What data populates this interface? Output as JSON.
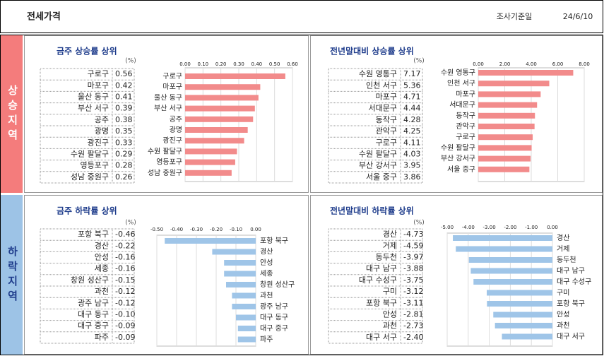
{
  "header": {
    "title": "전세가격",
    "date_label": "조사기준일",
    "date": "24/6/10"
  },
  "regions": [
    "상승지역",
    "하락지역"
  ],
  "chart_data": [
    {
      "type": "bar",
      "title": "금주 상승률 상위",
      "unit": "(%)",
      "color": "#f28b8b",
      "categories": [
        "구로구",
        "마포구",
        "울산 동구",
        "부산 서구",
        "공주",
        "광명",
        "광진구",
        "수원 팔달구",
        "영등포구",
        "성남 중원구"
      ],
      "values": [
        0.56,
        0.42,
        0.41,
        0.39,
        0.38,
        0.35,
        0.33,
        0.29,
        0.28,
        0.26
      ],
      "xlim": [
        0,
        0.6
      ],
      "xticks": [
        {
          "value": 0,
          "label": "0.00"
        },
        {
          "value": 0.1,
          "label": "0.10"
        },
        {
          "value": 0.2,
          "label": "0.20"
        },
        {
          "value": 0.3,
          "label": "0.30"
        },
        {
          "value": 0.4,
          "label": "0.40"
        },
        {
          "value": 0.5,
          "label": "0.50"
        },
        {
          "value": 0.6,
          "label": "0.60"
        }
      ]
    },
    {
      "type": "bar",
      "title": "전년말대비 상승률 상위",
      "unit": "(%)",
      "color": "#f28b8b",
      "categories": [
        "수원 영통구",
        "인천 서구",
        "마포구",
        "서대문구",
        "동작구",
        "관악구",
        "구로구",
        "수원 팔달구",
        "부산 강서구",
        "서울 중구"
      ],
      "values": [
        7.17,
        5.36,
        4.71,
        4.44,
        4.28,
        4.25,
        4.11,
        4.03,
        3.95,
        3.86
      ],
      "xlim": [
        0,
        8
      ],
      "xticks": [
        {
          "value": 0,
          "label": "0.00"
        },
        {
          "value": 2,
          "label": "2.00"
        },
        {
          "value": 4,
          "label": "4.00"
        },
        {
          "value": 6,
          "label": "6.00"
        },
        {
          "value": 8,
          "label": "8.00"
        }
      ]
    },
    {
      "type": "bar",
      "title": "금주 하락률 상위",
      "unit": "(%)",
      "color": "#9fc5e8",
      "categories": [
        "포항 북구",
        "경산",
        "안성",
        "세종",
        "창원 성산구",
        "과천",
        "광주 남구",
        "대구 동구",
        "대구 중구",
        "파주"
      ],
      "values": [
        -0.46,
        -0.22,
        -0.16,
        -0.16,
        -0.15,
        -0.12,
        -0.12,
        -0.1,
        -0.09,
        -0.09
      ],
      "value_labels": [
        "-0.46",
        "-0.22",
        "-0.16",
        "-0.16",
        "-0.15",
        "-0.12",
        "-0.12",
        "-0.10",
        "-0.09",
        "-0.09"
      ],
      "xlim": [
        -0.5,
        0
      ],
      "xticks": [
        {
          "value": -0.5,
          "label": "-0.50"
        },
        {
          "value": -0.4,
          "label": "-0.40"
        },
        {
          "value": -0.3,
          "label": "-0.30"
        },
        {
          "value": -0.2,
          "label": "-0.20"
        },
        {
          "value": -0.1,
          "label": "-0.10"
        },
        {
          "value": 0,
          "label": "0.00"
        }
      ]
    },
    {
      "type": "bar",
      "title": "전년말대비 하락률 상위",
      "unit": "(%)",
      "color": "#9fc5e8",
      "categories": [
        "경산",
        "거제",
        "동두천",
        "대구 남구",
        "대구 수성구",
        "구미",
        "포항 북구",
        "안성",
        "과천",
        "대구 서구"
      ],
      "values": [
        -4.73,
        -4.59,
        -3.97,
        -3.88,
        -3.75,
        -3.12,
        -3.11,
        -2.81,
        -2.73,
        -2.4
      ],
      "value_labels": [
        "-4.73",
        "-4.59",
        "-3.97",
        "-3.88",
        "-3.75",
        "-3.12",
        "-3.11",
        "-2.81",
        "-2.73",
        "-2.40"
      ],
      "xlim": [
        -5,
        0
      ],
      "xticks": [
        {
          "value": -5,
          "label": "-5.00"
        },
        {
          "value": -4,
          "label": "-4.00"
        },
        {
          "value": -3,
          "label": "-3.00"
        },
        {
          "value": -2,
          "label": "-2.00"
        },
        {
          "value": -1,
          "label": "-1.00"
        },
        {
          "value": 0,
          "label": "0.00"
        }
      ]
    }
  ]
}
